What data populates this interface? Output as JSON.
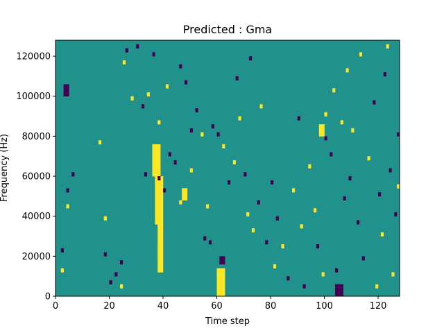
{
  "chart_data": {
    "type": "heatmap",
    "title": "Predicted : Gma",
    "xlabel": "Time step",
    "ylabel": "Frequency (Hz)",
    "xlim": [
      0,
      128
    ],
    "ylim": [
      0,
      128000
    ],
    "x_ticks": [
      0,
      20,
      40,
      60,
      80,
      100,
      120
    ],
    "y_ticks": [
      0,
      20000,
      40000,
      60000,
      80000,
      100000,
      120000
    ],
    "x_tick_labels": [
      "0",
      "20",
      "40",
      "60",
      "80",
      "100",
      "120"
    ],
    "y_tick_labels": [
      "0",
      "20000",
      "40000",
      "60000",
      "80000",
      "100000",
      "120000"
    ],
    "grid": false,
    "rows": 64,
    "cols": 128,
    "background_value": 0,
    "value_colors": {
      "-1": "#440154",
      "0": "#21918c",
      "1": "#fde725"
    },
    "sparse_cells": [
      [
        0,
        1,
        8
      ],
      [
        0,
        1,
        9
      ],
      [
        1,
        2,
        6
      ],
      [
        -1,
        2,
        11
      ],
      [
        1,
        4,
        22
      ],
      [
        -1,
        4,
        26
      ],
      [
        -1,
        6,
        30
      ],
      [
        1,
        16,
        38
      ],
      [
        -1,
        18,
        10
      ],
      [
        1,
        18,
        19
      ],
      [
        -1,
        20,
        3
      ],
      [
        -1,
        22,
        5
      ],
      [
        1,
        24,
        2
      ],
      [
        -1,
        24,
        8
      ],
      [
        1,
        25,
        58
      ],
      [
        -1,
        26,
        61
      ],
      [
        1,
        28,
        49
      ],
      [
        -1,
        30,
        62
      ],
      [
        -1,
        32,
        47
      ],
      [
        -1,
        33,
        30
      ],
      [
        1,
        34,
        50
      ],
      [
        -1,
        36,
        60
      ],
      [
        -1,
        38,
        29
      ],
      [
        1,
        38,
        43
      ],
      [
        -1,
        40,
        26
      ],
      [
        1,
        41,
        52
      ],
      [
        -1,
        42,
        35
      ],
      [
        -1,
        44,
        33
      ],
      [
        1,
        46,
        23
      ],
      [
        -1,
        46,
        57
      ],
      [
        -1,
        48,
        53
      ],
      [
        -1,
        50,
        41
      ],
      [
        1,
        50,
        31
      ],
      [
        -1,
        52,
        46
      ],
      [
        1,
        54,
        40
      ],
      [
        -1,
        55,
        14
      ],
      [
        1,
        56,
        22
      ],
      [
        -1,
        57,
        13
      ],
      [
        -1,
        58,
        42
      ],
      [
        -1,
        60,
        40
      ],
      [
        1,
        62,
        37
      ],
      [
        -1,
        64,
        28
      ],
      [
        1,
        66,
        33
      ],
      [
        -1,
        67,
        54
      ],
      [
        1,
        68,
        44
      ],
      [
        -1,
        70,
        30
      ],
      [
        1,
        71,
        20
      ],
      [
        -1,
        72,
        59
      ],
      [
        1,
        73,
        16
      ],
      [
        -1,
        75,
        23
      ],
      [
        1,
        76,
        47
      ],
      [
        -1,
        78,
        13
      ],
      [
        -1,
        80,
        28
      ],
      [
        1,
        81,
        7
      ],
      [
        -1,
        82,
        19
      ],
      [
        1,
        84,
        12
      ],
      [
        -1,
        86,
        4
      ],
      [
        1,
        88,
        26
      ],
      [
        -1,
        90,
        44
      ],
      [
        1,
        91,
        17
      ],
      [
        -1,
        92,
        2
      ],
      [
        1,
        94,
        32
      ],
      [
        1,
        96,
        21
      ],
      [
        -1,
        97,
        12
      ],
      [
        1,
        99,
        5
      ],
      [
        -1,
        100,
        39
      ],
      [
        1,
        100,
        45
      ],
      [
        -1,
        102,
        35
      ],
      [
        1,
        103,
        51
      ],
      [
        -1,
        104,
        6
      ],
      [
        1,
        106,
        43
      ],
      [
        -1,
        107,
        24
      ],
      [
        1,
        108,
        56
      ],
      [
        -1,
        109,
        29
      ],
      [
        1,
        110,
        41
      ],
      [
        -1,
        112,
        18
      ],
      [
        1,
        113,
        60
      ],
      [
        -1,
        114,
        9
      ],
      [
        1,
        116,
        34
      ],
      [
        -1,
        118,
        48
      ],
      [
        1,
        119,
        2
      ],
      [
        -1,
        120,
        25
      ],
      [
        1,
        121,
        15
      ],
      [
        -1,
        122,
        55
      ],
      [
        1,
        123,
        62
      ],
      [
        -1,
        124,
        31
      ],
      [
        1,
        125,
        5
      ],
      [
        -1,
        126,
        20
      ],
      [
        1,
        127,
        27
      ],
      [
        -1,
        127,
        40
      ]
    ],
    "dense_regions": [
      {
        "value": 1,
        "cols": [
          36,
          38
        ],
        "rows": [
          30,
          37
        ]
      },
      {
        "value": 1,
        "cols": [
          37,
          39
        ],
        "rows": [
          18,
          29
        ]
      },
      {
        "value": 1,
        "cols": [
          38,
          39
        ],
        "rows": [
          6,
          17
        ]
      },
      {
        "value": 1,
        "cols": [
          60,
          62
        ],
        "rows": [
          0,
          6
        ]
      },
      {
        "value": -1,
        "cols": [
          104,
          106
        ],
        "rows": [
          0,
          2
        ]
      },
      {
        "value": -1,
        "cols": [
          61,
          62
        ],
        "rows": [
          8,
          9
        ]
      },
      {
        "value": -1,
        "cols": [
          3,
          4
        ],
        "rows": [
          50,
          52
        ]
      },
      {
        "value": 1,
        "cols": [
          98,
          99
        ],
        "rows": [
          40,
          42
        ]
      },
      {
        "value": 1,
        "cols": [
          47,
          48
        ],
        "rows": [
          24,
          26
        ]
      }
    ]
  }
}
